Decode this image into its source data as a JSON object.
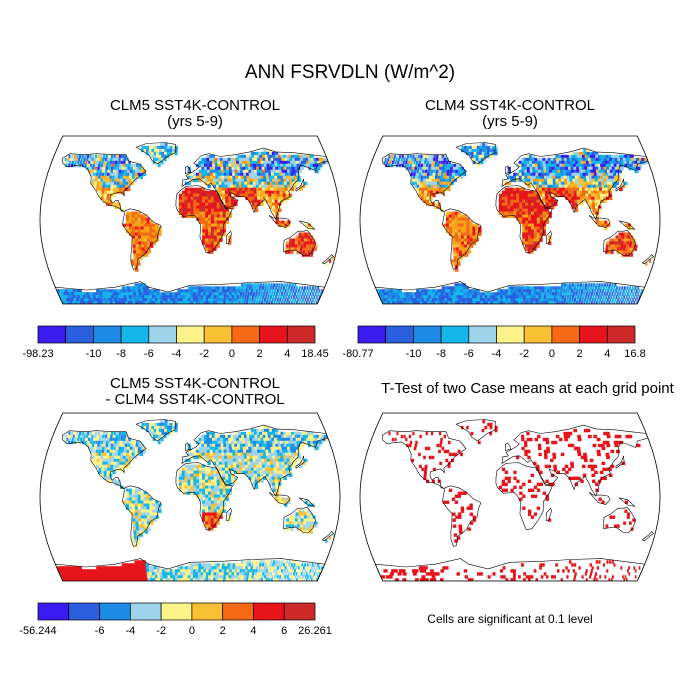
{
  "figure_title": "ANN FSRVDLN (W/m^2)",
  "colors": {
    "palette": [
      "#3a1cf2",
      "#2b5fe0",
      "#1d8be6",
      "#14b6ec",
      "#9fd3ec",
      "#fbf28a",
      "#f9c033",
      "#f7a21b",
      "#f46a14",
      "#e8141c",
      "#cf2a2a"
    ],
    "land_outline": "#000000",
    "ocean": "#ffffff",
    "significance": "#e8141c"
  },
  "panels": [
    {
      "id": "clm5",
      "title_line1": "CLM5 SST4K-CONTROL",
      "title_line2": "(yrs 5-9)",
      "map_style": "warm",
      "colorbar": {
        "labels": [
          "-98.23",
          "-10",
          "-8",
          "-6",
          "-4",
          "-2",
          "0",
          "2",
          "4",
          "18.45"
        ]
      }
    },
    {
      "id": "clm4",
      "title_line1": "CLM4 SST4K-CONTROL",
      "title_line2": "(yrs 5-9)",
      "map_style": "warm2",
      "colorbar": {
        "labels": [
          "-80.77",
          "-10",
          "-8",
          "-6",
          "-4",
          "-2",
          "0",
          "2",
          "4",
          "16.8"
        ]
      }
    },
    {
      "id": "diff",
      "title_line1": "CLM5 SST4K-CONTROL",
      "title_line2": "- CLM4 SST4K-CONTROL",
      "map_style": "diff",
      "colorbar": {
        "labels": [
          "-56.244",
          "-6",
          "-4",
          "-2",
          "0",
          "2",
          "4",
          "6",
          "26.261"
        ]
      }
    },
    {
      "id": "ttest",
      "title_line1": "T-Test of two Case means at each grid point",
      "title_line2": "",
      "map_style": "ttest",
      "note": "Cells are significant at 0.1 level"
    }
  ],
  "chart_data": [
    {
      "type": "heatmap",
      "title": "CLM5 SST4K-CONTROL (yrs 5-9)",
      "projection": "Robinson",
      "variable": "ANN FSRVDLN",
      "units": "W/m^2",
      "contour_levels": [
        -10,
        -8,
        -6,
        -4,
        -2,
        0,
        2,
        4
      ],
      "range": [
        -98.23,
        18.45
      ]
    },
    {
      "type": "heatmap",
      "title": "CLM4 SST4K-CONTROL (yrs 5-9)",
      "projection": "Robinson",
      "variable": "ANN FSRVDLN",
      "units": "W/m^2",
      "contour_levels": [
        -10,
        -8,
        -6,
        -4,
        -2,
        0,
        2,
        4
      ],
      "range": [
        -80.77,
        16.8
      ]
    },
    {
      "type": "heatmap",
      "title": "CLM5 SST4K-CONTROL - CLM4 SST4K-CONTROL",
      "projection": "Robinson",
      "variable": "ANN FSRVDLN",
      "units": "W/m^2",
      "contour_levels": [
        -6,
        -4,
        -2,
        0,
        2,
        4,
        6
      ],
      "range": [
        -56.244,
        26.261
      ]
    },
    {
      "type": "heatmap",
      "title": "T-Test of two Case means at each grid point",
      "projection": "Robinson",
      "significance_level": 0.1
    }
  ]
}
